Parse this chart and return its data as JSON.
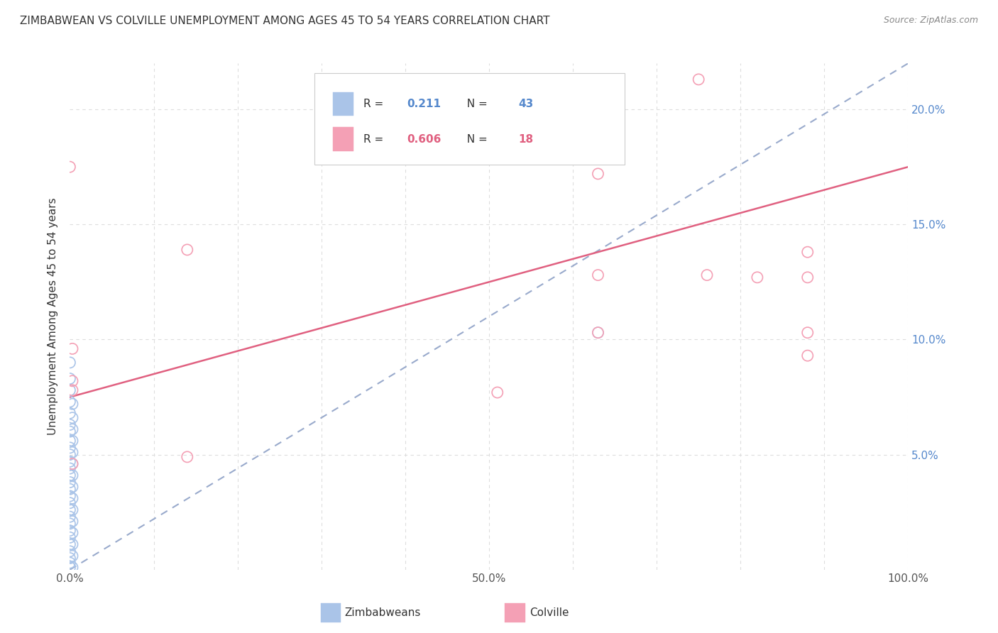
{
  "title": "ZIMBABWEAN VS COLVILLE UNEMPLOYMENT AMONG AGES 45 TO 54 YEARS CORRELATION CHART",
  "source": "Source: ZipAtlas.com",
  "ylabel": "Unemployment Among Ages 45 to 54 years",
  "background_color": "#ffffff",
  "grid_color": "#dddddd",
  "xlim": [
    0,
    1.0
  ],
  "ylim": [
    0,
    0.22
  ],
  "xtick_positions": [
    0.0,
    0.1,
    0.2,
    0.3,
    0.4,
    0.5,
    0.6,
    0.7,
    0.8,
    0.9,
    1.0
  ],
  "xtick_labels": [
    "0.0%",
    "",
    "",
    "",
    "",
    "50.0%",
    "",
    "",
    "",
    "",
    "100.0%"
  ],
  "ytick_positions": [
    0.0,
    0.05,
    0.1,
    0.15,
    0.2
  ],
  "ytick_labels": [
    "",
    "5.0%",
    "10.0%",
    "15.0%",
    "20.0%"
  ],
  "legend_R_blue": "0.211",
  "legend_N_blue": "43",
  "legend_R_pink": "0.606",
  "legend_N_pink": "18",
  "blue_color": "#aac4e8",
  "pink_color": "#f4a0b5",
  "blue_line_color": "#99aacc",
  "pink_line_color": "#e06080",
  "blue_scatter": [
    [
      0.0,
      0.09
    ],
    [
      0.0,
      0.083
    ],
    [
      0.0,
      0.078
    ],
    [
      0.0,
      0.073
    ],
    [
      0.0,
      0.068
    ],
    [
      0.0,
      0.063
    ],
    [
      0.0,
      0.06
    ],
    [
      0.0,
      0.056
    ],
    [
      0.0,
      0.053
    ],
    [
      0.0,
      0.05
    ],
    [
      0.0,
      0.047
    ],
    [
      0.0,
      0.044
    ],
    [
      0.0,
      0.041
    ],
    [
      0.0,
      0.038
    ],
    [
      0.0,
      0.035
    ],
    [
      0.0,
      0.032
    ],
    [
      0.0,
      0.029
    ],
    [
      0.0,
      0.026
    ],
    [
      0.0,
      0.023
    ],
    [
      0.0,
      0.02
    ],
    [
      0.0,
      0.017
    ],
    [
      0.0,
      0.014
    ],
    [
      0.0,
      0.011
    ],
    [
      0.0,
      0.008
    ],
    [
      0.0,
      0.005
    ],
    [
      0.0,
      0.003
    ],
    [
      0.0,
      0.001
    ],
    [
      0.003,
      0.072
    ],
    [
      0.003,
      0.066
    ],
    [
      0.003,
      0.061
    ],
    [
      0.003,
      0.056
    ],
    [
      0.003,
      0.051
    ],
    [
      0.003,
      0.046
    ],
    [
      0.003,
      0.041
    ],
    [
      0.003,
      0.036
    ],
    [
      0.003,
      0.031
    ],
    [
      0.003,
      0.026
    ],
    [
      0.003,
      0.021
    ],
    [
      0.003,
      0.016
    ],
    [
      0.003,
      0.011
    ],
    [
      0.003,
      0.006
    ],
    [
      0.003,
      0.001
    ],
    [
      0.63,
      0.103
    ]
  ],
  "pink_scatter": [
    [
      0.0,
      0.175
    ],
    [
      0.003,
      0.096
    ],
    [
      0.003,
      0.082
    ],
    [
      0.003,
      0.046
    ],
    [
      0.14,
      0.139
    ],
    [
      0.14,
      0.049
    ],
    [
      0.51,
      0.077
    ],
    [
      0.63,
      0.172
    ],
    [
      0.63,
      0.128
    ],
    [
      0.75,
      0.213
    ],
    [
      0.76,
      0.128
    ],
    [
      0.82,
      0.127
    ],
    [
      0.88,
      0.138
    ],
    [
      0.88,
      0.127
    ],
    [
      0.88,
      0.103
    ],
    [
      0.88,
      0.093
    ],
    [
      0.63,
      0.103
    ],
    [
      0.003,
      0.078
    ]
  ],
  "blue_line_x": [
    0.0,
    1.0
  ],
  "blue_line_y": [
    0.0,
    0.22
  ],
  "pink_line_x": [
    0.0,
    1.0
  ],
  "pink_line_y": [
    0.075,
    0.175
  ]
}
